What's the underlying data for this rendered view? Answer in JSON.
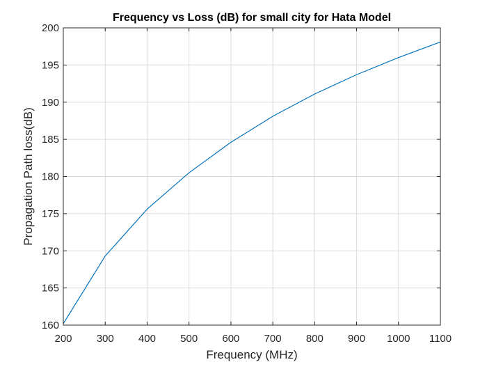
{
  "chart_data": {
    "type": "line",
    "title": "Frequency vs Loss (dB) for small city for Hata Model",
    "xlabel": "Frequency (MHz)",
    "ylabel": "Propagation Path loss(dB)",
    "xlim": [
      200,
      1100
    ],
    "ylim": [
      160,
      200
    ],
    "xticks": [
      200,
      300,
      400,
      500,
      600,
      700,
      800,
      900,
      1000,
      1100
    ],
    "yticks": [
      160,
      165,
      170,
      175,
      180,
      185,
      190,
      195,
      200
    ],
    "grid": true,
    "series": [
      {
        "color": "#0072bd",
        "x": [
          200,
          300,
          400,
          500,
          600,
          700,
          800,
          900,
          1000,
          1100
        ],
        "y": [
          160.2,
          169.3,
          175.6,
          180.5,
          184.6,
          188.1,
          191.1,
          193.7,
          196.0,
          198.1
        ]
      }
    ]
  }
}
